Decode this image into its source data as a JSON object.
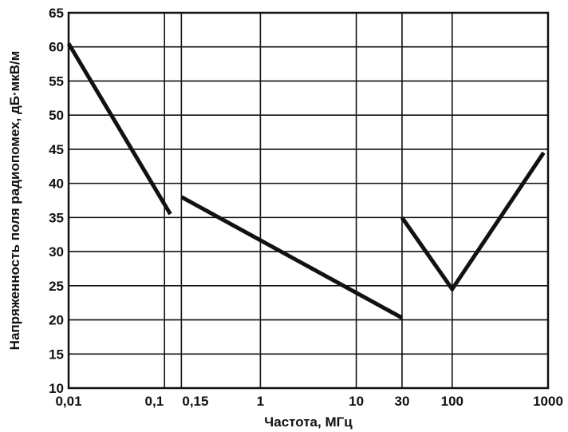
{
  "chart_data": {
    "type": "line",
    "title": "",
    "xlabel": "Частота, МГц",
    "ylabel": "Напряженность поля радиопомех, дБ·мкВ/м",
    "x_scale": "log",
    "xlim": [
      0.01,
      1000
    ],
    "ylim": [
      10,
      65
    ],
    "grid": true,
    "x_ticks": [
      {
        "value": 0.01,
        "label": "0,01"
      },
      {
        "value": 0.1,
        "label": "0,1"
      },
      {
        "value": 0.15,
        "label": "0,15"
      },
      {
        "value": 1,
        "label": "1"
      },
      {
        "value": 10,
        "label": "10"
      },
      {
        "value": 30,
        "label": "30"
      },
      {
        "value": 100,
        "label": "100"
      },
      {
        "value": 1000,
        "label": "1000"
      }
    ],
    "y_ticks": [
      10,
      15,
      20,
      25,
      30,
      35,
      40,
      45,
      50,
      55,
      60,
      65
    ],
    "line_color": "#111111",
    "series": [
      {
        "x": [
          0.01,
          0.115
        ],
        "y": [
          60.5,
          35.5
        ]
      },
      {
        "x": [
          0.15,
          30
        ],
        "y": [
          38,
          20.3
        ]
      },
      {
        "x": [
          30,
          100,
          900
        ],
        "y": [
          35,
          24.5,
          44.5
        ]
      }
    ]
  }
}
